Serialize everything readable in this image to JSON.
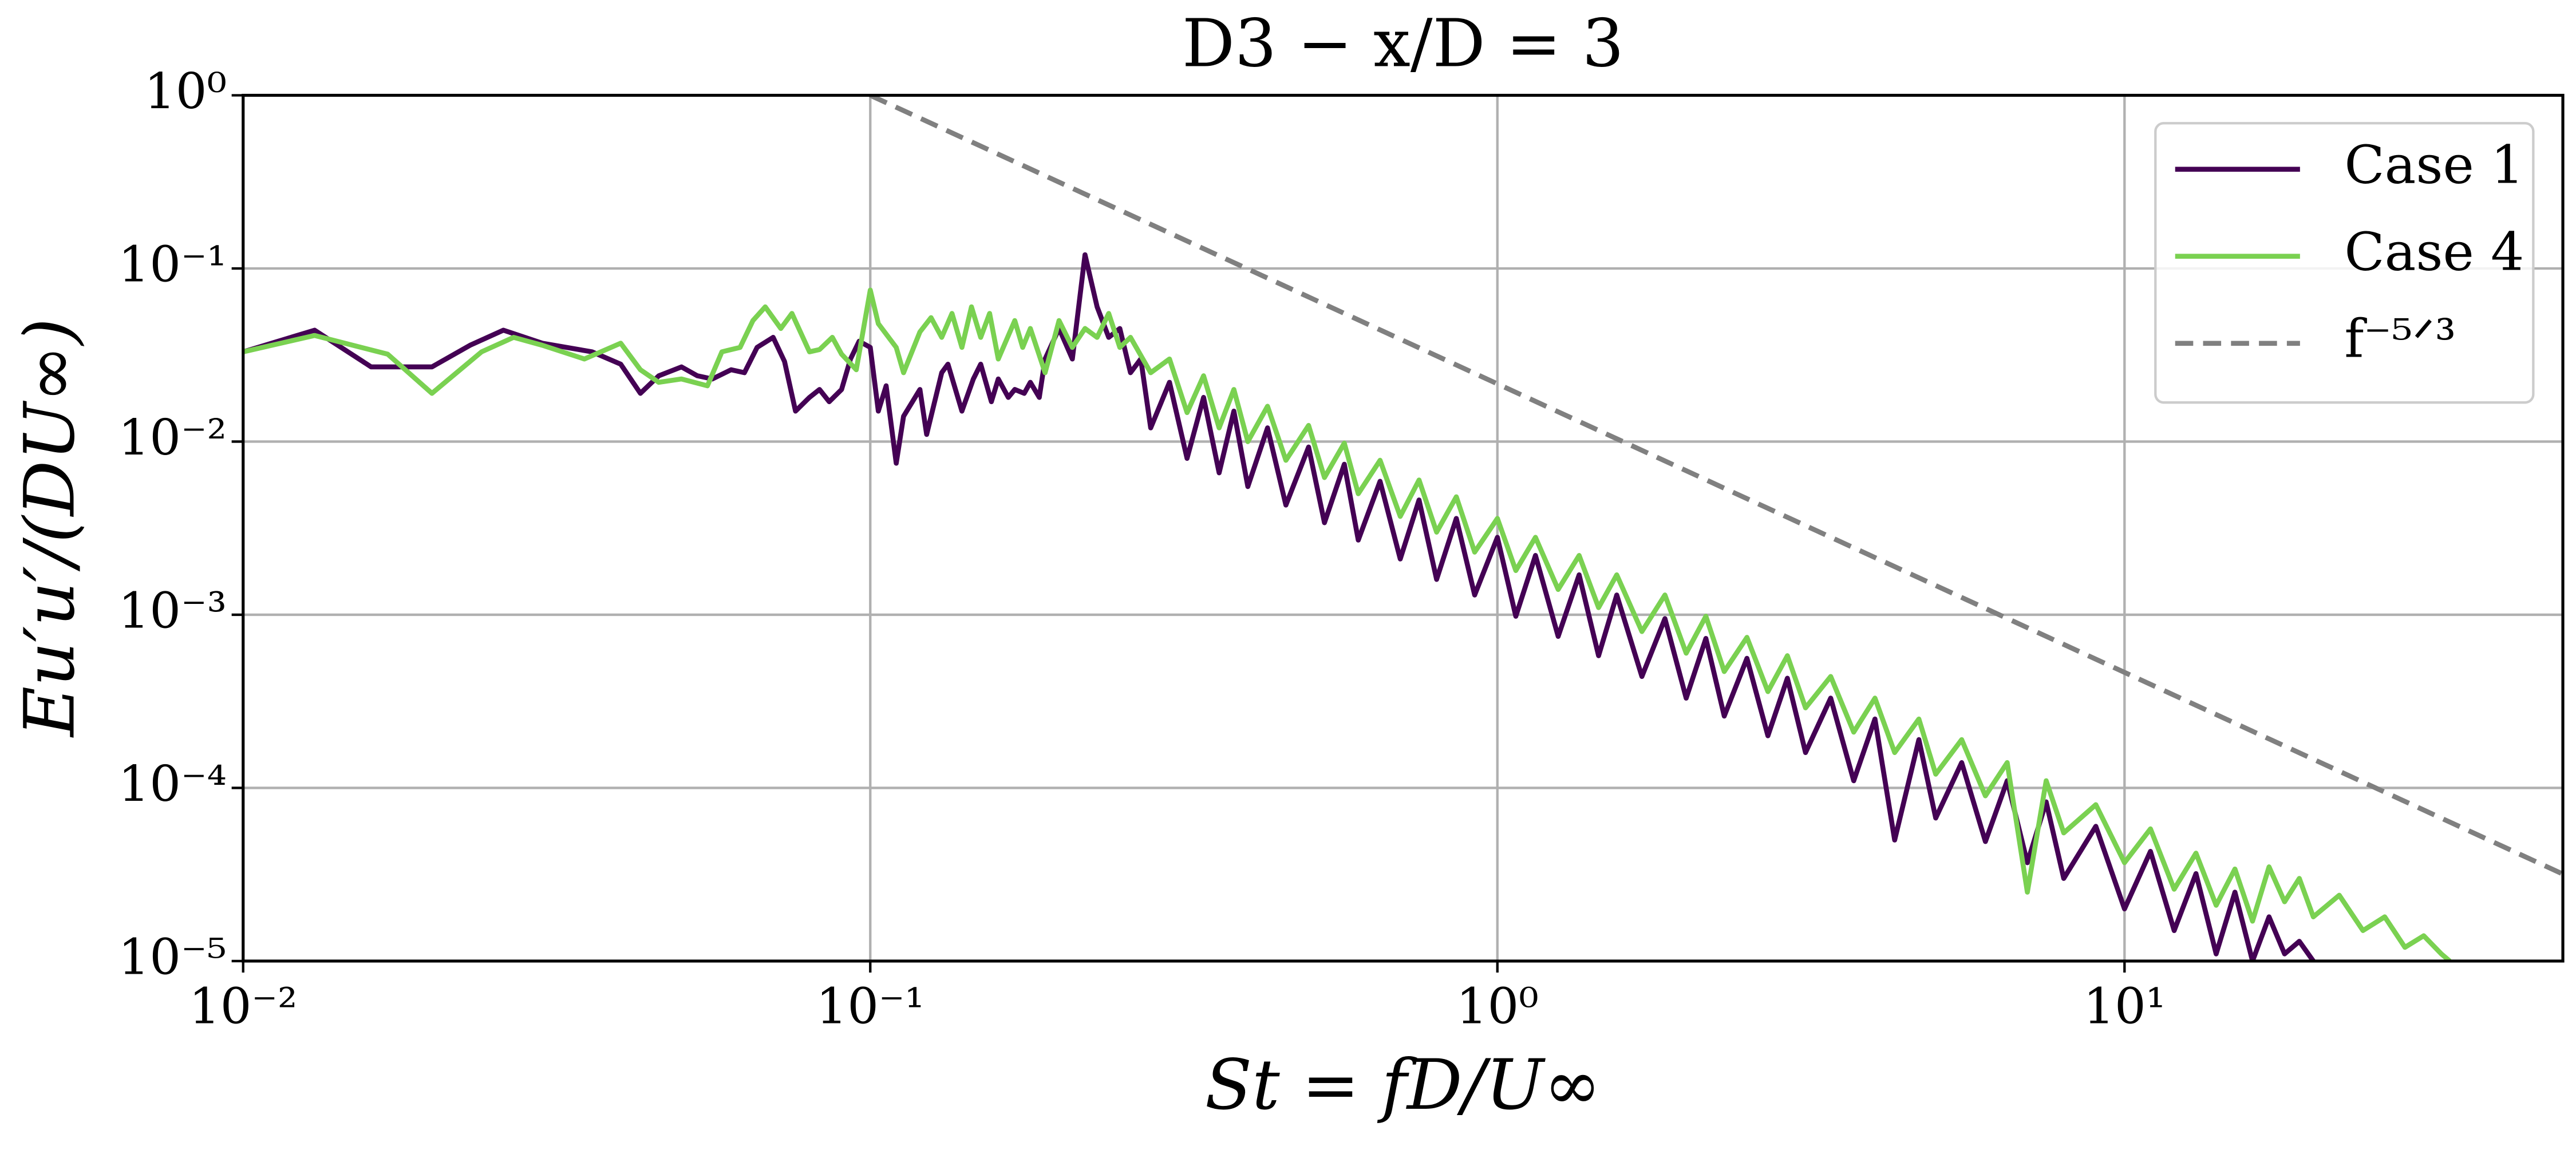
{
  "chart_data": {
    "type": "line",
    "title": "D3 − x/D = 3",
    "xlabel": "St = fD/U∞",
    "ylabel": "Eu′u′/(DU∞)",
    "xscale": "log",
    "yscale": "log",
    "grid": true,
    "legend": "upper right",
    "xlim": [
      0.01,
      50
    ],
    "ylim": [
      1e-05,
      1
    ],
    "xticks": [
      {
        "value": 0.01,
        "label": "10⁻²"
      },
      {
        "value": 0.1,
        "label": "10⁻¹"
      },
      {
        "value": 1,
        "label": "10⁰"
      },
      {
        "value": 10,
        "label": "10¹"
      }
    ],
    "yticks": [
      {
        "value": 1e-05,
        "label": "10⁻⁵"
      },
      {
        "value": 0.0001,
        "label": "10⁻⁴"
      },
      {
        "value": 0.001,
        "label": "10⁻³"
      },
      {
        "value": 0.01,
        "label": "10⁻²"
      },
      {
        "value": 0.1,
        "label": "10⁻¹"
      },
      {
        "value": 1,
        "label": "10⁰"
      }
    ],
    "series": [
      {
        "name": "Case 1",
        "color": "#440154",
        "linestyle": "solid",
        "x": [
          0.01,
          0.013,
          0.016,
          0.02,
          0.023,
          0.026,
          0.03,
          0.036,
          0.04,
          0.043,
          0.046,
          0.05,
          0.053,
          0.056,
          0.06,
          0.063,
          0.066,
          0.07,
          0.073,
          0.076,
          0.08,
          0.083,
          0.086,
          0.09,
          0.093,
          0.096,
          0.1,
          0.103,
          0.106,
          0.11,
          0.113,
          0.12,
          0.123,
          0.13,
          0.133,
          0.14,
          0.146,
          0.15,
          0.156,
          0.16,
          0.166,
          0.17,
          0.176,
          0.18,
          0.186,
          0.19,
          0.2,
          0.21,
          0.22,
          0.23,
          0.24,
          0.25,
          0.26,
          0.27,
          0.28,
          0.3,
          0.32,
          0.34,
          0.36,
          0.38,
          0.4,
          0.43,
          0.46,
          0.5,
          0.53,
          0.57,
          0.6,
          0.65,
          0.7,
          0.75,
          0.8,
          0.86,
          0.92,
          1.0,
          1.07,
          1.15,
          1.25,
          1.35,
          1.45,
          1.55,
          1.7,
          1.85,
          2.0,
          2.15,
          2.3,
          2.5,
          2.7,
          2.9,
          3.1,
          3.4,
          3.7,
          4.0,
          4.3,
          4.7,
          5.0,
          5.5,
          6.0,
          6.5,
          7.0,
          7.5,
          8.0,
          9.0,
          10,
          11,
          12,
          13,
          14,
          15,
          16,
          17,
          18,
          19,
          20
        ],
        "values": [
          0.033,
          0.044,
          0.027,
          0.027,
          0.036,
          0.044,
          0.037,
          0.033,
          0.028,
          0.019,
          0.024,
          0.027,
          0.024,
          0.023,
          0.026,
          0.025,
          0.035,
          0.04,
          0.029,
          0.015,
          0.018,
          0.02,
          0.017,
          0.02,
          0.03,
          0.038,
          0.035,
          0.015,
          0.021,
          0.0075,
          0.014,
          0.02,
          0.011,
          0.025,
          0.028,
          0.015,
          0.023,
          0.028,
          0.017,
          0.023,
          0.018,
          0.02,
          0.019,
          0.022,
          0.018,
          0.03,
          0.045,
          0.03,
          0.12,
          0.06,
          0.04,
          0.045,
          0.025,
          0.03,
          0.012,
          0.022,
          0.008,
          0.018,
          0.0066,
          0.015,
          0.0055,
          0.012,
          0.0043,
          0.0093,
          0.0034,
          0.0074,
          0.0027,
          0.0059,
          0.0021,
          0.0046,
          0.0016,
          0.0036,
          0.0013,
          0.0028,
          0.00098,
          0.0022,
          0.00075,
          0.0017,
          0.00058,
          0.0013,
          0.00044,
          0.00095,
          0.00033,
          0.00073,
          0.00026,
          0.00056,
          0.0002,
          0.00043,
          0.00016,
          0.00033,
          0.00011,
          0.00025,
          5e-05,
          0.00019,
          6.7e-05,
          0.00014,
          4.9e-05,
          0.00011,
          3.7e-05,
          8.3e-05,
          3e-05,
          6e-05,
          2e-05,
          4.3e-05,
          1.5e-05,
          3.2e-05,
          1.1e-05,
          2.5e-05,
          1e-05,
          1.8e-05,
          1.1e-05,
          1.3e-05,
          1e-05
        ]
      },
      {
        "name": "Case 4",
        "color": "#7ad151",
        "linestyle": "solid",
        "x": [
          0.01,
          0.013,
          0.017,
          0.02,
          0.024,
          0.027,
          0.03,
          0.035,
          0.04,
          0.043,
          0.046,
          0.05,
          0.055,
          0.058,
          0.062,
          0.065,
          0.068,
          0.072,
          0.075,
          0.08,
          0.083,
          0.087,
          0.09,
          0.095,
          0.1,
          0.103,
          0.11,
          0.113,
          0.12,
          0.125,
          0.13,
          0.135,
          0.14,
          0.145,
          0.15,
          0.155,
          0.16,
          0.17,
          0.175,
          0.18,
          0.19,
          0.2,
          0.21,
          0.22,
          0.23,
          0.24,
          0.25,
          0.26,
          0.28,
          0.3,
          0.32,
          0.34,
          0.36,
          0.38,
          0.4,
          0.43,
          0.46,
          0.5,
          0.53,
          0.57,
          0.6,
          0.65,
          0.7,
          0.75,
          0.8,
          0.86,
          0.92,
          1.0,
          1.07,
          1.15,
          1.25,
          1.35,
          1.45,
          1.55,
          1.7,
          1.85,
          2.0,
          2.15,
          2.3,
          2.5,
          2.7,
          2.9,
          3.1,
          3.4,
          3.7,
          4.0,
          4.3,
          4.7,
          5.0,
          5.5,
          6.0,
          6.5,
          7.0,
          7.5,
          8.0,
          9.0,
          10,
          11,
          12,
          13,
          14,
          15,
          16,
          17,
          18,
          19,
          20,
          22,
          24,
          26,
          28,
          30,
          32,
          33
        ],
        "values": [
          0.033,
          0.041,
          0.032,
          0.019,
          0.033,
          0.04,
          0.036,
          0.03,
          0.037,
          0.026,
          0.022,
          0.023,
          0.021,
          0.033,
          0.035,
          0.05,
          0.06,
          0.045,
          0.055,
          0.033,
          0.034,
          0.04,
          0.032,
          0.026,
          0.075,
          0.048,
          0.035,
          0.025,
          0.043,
          0.052,
          0.04,
          0.055,
          0.035,
          0.06,
          0.04,
          0.055,
          0.03,
          0.05,
          0.035,
          0.045,
          0.025,
          0.05,
          0.035,
          0.045,
          0.04,
          0.055,
          0.035,
          0.04,
          0.025,
          0.03,
          0.0147,
          0.024,
          0.012,
          0.02,
          0.01,
          0.016,
          0.0078,
          0.0124,
          0.0062,
          0.0098,
          0.005,
          0.0078,
          0.0037,
          0.006,
          0.003,
          0.0048,
          0.0023,
          0.0036,
          0.0018,
          0.0028,
          0.0014,
          0.0022,
          0.0011,
          0.0017,
          0.0008,
          0.0013,
          0.0006,
          0.00098,
          0.00047,
          0.00074,
          0.00036,
          0.00058,
          0.00029,
          0.00044,
          0.00021,
          0.00033,
          0.00016,
          0.00025,
          0.00012,
          0.00019,
          9e-05,
          0.00014,
          2.5e-05,
          0.00011,
          5.5e-05,
          8e-05,
          3.7e-05,
          5.8e-05,
          2.6e-05,
          4.2e-05,
          2.1e-05,
          3.4e-05,
          1.7e-05,
          3.5e-05,
          2.2e-05,
          3e-05,
          1.8e-05,
          2.4e-05,
          1.5e-05,
          1.8e-05,
          1.2e-05,
          1.4e-05,
          1.1e-05,
          1e-05
        ]
      },
      {
        "name": "f⁻⁵ᐟ³",
        "color": "#808080",
        "linestyle": "dashed",
        "x": [
          0.1,
          50
        ],
        "values": [
          1,
          3.18e-05
        ]
      }
    ]
  }
}
